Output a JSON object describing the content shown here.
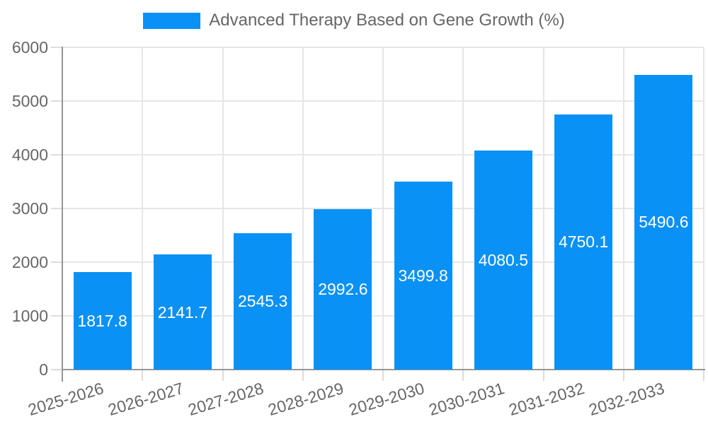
{
  "legend": {
    "label": "Advanced Therapy Based on Gene Growth (%)"
  },
  "chart_data": {
    "type": "bar",
    "title": "Advanced Therapy Based on Gene Growth (%)",
    "categories": [
      "2025-2026",
      "2026-2027",
      "2027-2028",
      "2028-2029",
      "2029-2030",
      "2030-2031",
      "2031-2032",
      "2032-2033"
    ],
    "values": [
      1817.8,
      2141.7,
      2545.3,
      2992.6,
      3499.8,
      4080.5,
      4750.1,
      5490.6
    ],
    "series_name": "Advanced Therapy Based on Gene Growth (%)",
    "xlabel": "",
    "ylabel": "",
    "ylim": [
      0,
      6000
    ],
    "yticks": [
      0,
      1000,
      2000,
      3000,
      4000,
      5000,
      6000
    ],
    "grid": true,
    "legend_position": "top",
    "bar_labels": "centered-white"
  },
  "colors": {
    "bar": "#0991F6",
    "bar_label": "#FFFFFF",
    "axis_line": "#969696",
    "grid_line": "#E6E6E6",
    "tick_mark": "#DCDCDC",
    "text": "#666666",
    "background": "#FFFFFF"
  }
}
